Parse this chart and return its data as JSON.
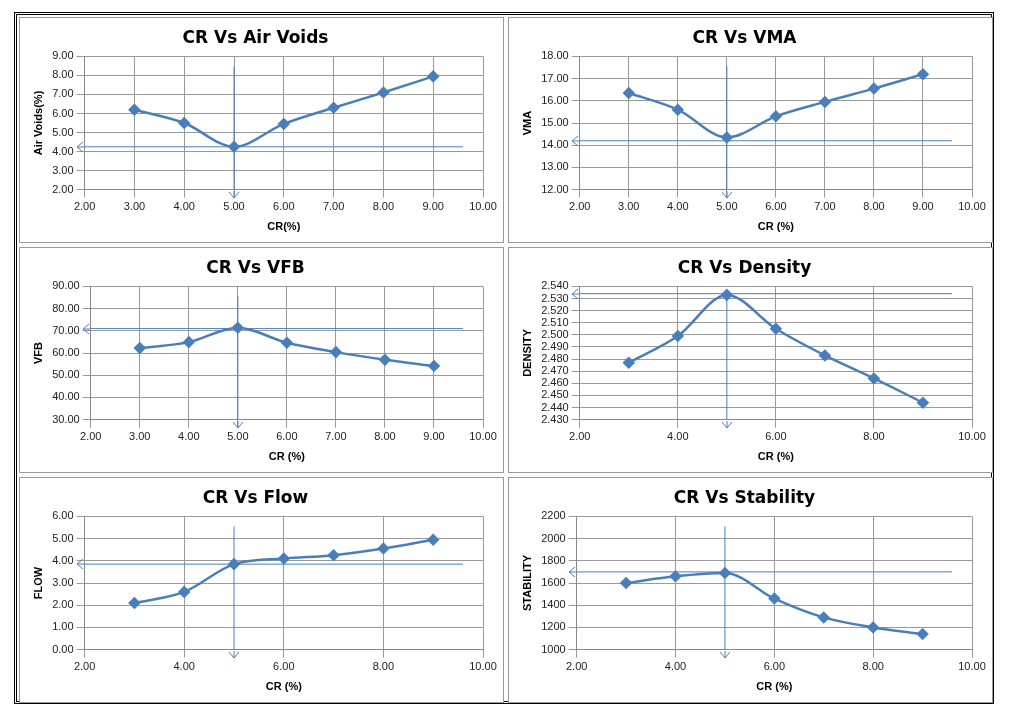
{
  "chart_data": [
    {
      "type": "line",
      "title": "CR Vs Air Voids",
      "xlabel": "CR(%)",
      "ylabel": "Air Voids(%)",
      "x": [
        3,
        4,
        5,
        6,
        7,
        8,
        9
      ],
      "marker": "diamond",
      "grid": true,
      "line_style": "solid",
      "series": [
        {
          "color": "#4a7ebb",
          "values": [
            6.2,
            5.5,
            4.25,
            5.45,
            6.3,
            7.1,
            7.95
          ]
        }
      ],
      "xlim": [
        2,
        10
      ],
      "xticks": [
        {
          "value": 2,
          "label": "2.00"
        },
        {
          "value": 3,
          "label": "3.00"
        },
        {
          "value": 4,
          "label": "4.00"
        },
        {
          "value": 5,
          "label": "5.00"
        },
        {
          "value": 6,
          "label": "6.00"
        },
        {
          "value": 7,
          "label": "7.00"
        },
        {
          "value": 8,
          "label": "8.00"
        },
        {
          "value": 9,
          "label": "9.00"
        },
        {
          "value": 10,
          "label": "10.00"
        }
      ],
      "ylim": [
        2,
        9
      ],
      "yticks": [
        {
          "value": 2,
          "label": "2.00"
        },
        {
          "value": 3,
          "label": "3.00"
        },
        {
          "value": 4,
          "label": "4.00"
        },
        {
          "value": 5,
          "label": "5.00"
        },
        {
          "value": 6,
          "label": "6.00"
        },
        {
          "value": 7,
          "label": "7.00"
        },
        {
          "value": 8,
          "label": "8.00"
        },
        {
          "value": 9,
          "label": "9.00"
        }
      ],
      "ref_lines": [
        {
          "axis": "y",
          "value": 4.25,
          "label": null
        },
        {
          "axis": "x",
          "value": 5,
          "label": null
        }
      ]
    },
    {
      "type": "line",
      "title": "CR Vs VMA",
      "xlabel": "CR (%)",
      "ylabel": "VMA",
      "x": [
        3,
        4,
        5,
        6,
        7,
        8,
        9
      ],
      "marker": "diamond",
      "grid": true,
      "line_style": "solid",
      "series": [
        {
          "color": "#4a7ebb",
          "values": [
            16.35,
            15.6,
            14.35,
            15.3,
            15.95,
            16.55,
            17.2
          ]
        }
      ],
      "xlim": [
        2,
        10
      ],
      "xticks": [
        {
          "value": 2,
          "label": "2.00"
        },
        {
          "value": 3,
          "label": "3.00"
        },
        {
          "value": 4,
          "label": "4.00"
        },
        {
          "value": 5,
          "label": "5.00"
        },
        {
          "value": 6,
          "label": "6.00"
        },
        {
          "value": 7,
          "label": "7.00"
        },
        {
          "value": 8,
          "label": "8.00"
        },
        {
          "value": 9,
          "label": "9.00"
        },
        {
          "value": 10,
          "label": "10.00"
        }
      ],
      "ylim": [
        12,
        18
      ],
      "yticks": [
        {
          "value": 12,
          "label": "12.00"
        },
        {
          "value": 13,
          "label": "13.00"
        },
        {
          "value": 14,
          "label": "14.00"
        },
        {
          "value": 15,
          "label": "15.00"
        },
        {
          "value": 16,
          "label": "16.00"
        },
        {
          "value": 17,
          "label": "17.00"
        },
        {
          "value": 18,
          "label": "18.00"
        }
      ],
      "ref_lines": [
        {
          "axis": "y",
          "value": 14.2,
          "label": null
        },
        {
          "axis": "x",
          "value": 5,
          "label": null
        }
      ]
    },
    {
      "type": "line",
      "title": "CR Vs VFB",
      "xlabel": "CR (%)",
      "ylabel": "VFB",
      "x": [
        3,
        4,
        5,
        6,
        7,
        8,
        9
      ],
      "marker": "diamond",
      "grid": true,
      "line_style": "solid",
      "series": [
        {
          "color": "#4a7ebb",
          "values": [
            62.2,
            64.9,
            71.4,
            64.6,
            60.4,
            57.0,
            54.1
          ]
        }
      ],
      "xlim": [
        2,
        10
      ],
      "xticks": [
        {
          "value": 2,
          "label": "2.00"
        },
        {
          "value": 3,
          "label": "3.00"
        },
        {
          "value": 4,
          "label": "4.00"
        },
        {
          "value": 5,
          "label": "5.00"
        },
        {
          "value": 6,
          "label": "6.00"
        },
        {
          "value": 7,
          "label": "7.00"
        },
        {
          "value": 8,
          "label": "8.00"
        },
        {
          "value": 9,
          "label": "9.00"
        },
        {
          "value": 10,
          "label": "10.00"
        }
      ],
      "ylim": [
        30,
        90
      ],
      "yticks": [
        {
          "value": 30,
          "label": "30.00"
        },
        {
          "value": 40,
          "label": "40.00"
        },
        {
          "value": 50,
          "label": "50.00"
        },
        {
          "value": 60,
          "label": "60.00"
        },
        {
          "value": 70,
          "label": "70.00"
        },
        {
          "value": 80,
          "label": "80.00"
        },
        {
          "value": 90,
          "label": "90.00"
        }
      ],
      "ref_lines": [
        {
          "axis": "y",
          "value": 71,
          "label": null
        },
        {
          "axis": "x",
          "value": 5,
          "label": null
        }
      ]
    },
    {
      "type": "line",
      "title": "CR Vs Density",
      "xlabel": "CR (%)",
      "ylabel": "DENSITY",
      "x": [
        3,
        4,
        5,
        6,
        7,
        8,
        9
      ],
      "marker": "diamond",
      "grid": true,
      "line_style": "solid",
      "series": [
        {
          "color": "#4a7ebb",
          "values": [
            2.477,
            2.499,
            2.533,
            2.505,
            2.483,
            2.464,
            2.444
          ]
        }
      ],
      "xlim": [
        2,
        10
      ],
      "xticks": [
        {
          "value": 2,
          "label": "2.00"
        },
        {
          "value": 4,
          "label": "4.00"
        },
        {
          "value": 6,
          "label": "6.00"
        },
        {
          "value": 8,
          "label": "8.00"
        },
        {
          "value": 10,
          "label": "10.00"
        }
      ],
      "ylim": [
        2.43,
        2.54
      ],
      "yticks": [
        {
          "value": 2.43,
          "label": "2.430"
        },
        {
          "value": 2.44,
          "label": "2.440"
        },
        {
          "value": 2.45,
          "label": "2.450"
        },
        {
          "value": 2.46,
          "label": "2.460"
        },
        {
          "value": 2.47,
          "label": "2.470"
        },
        {
          "value": 2.48,
          "label": "2.480"
        },
        {
          "value": 2.49,
          "label": "2.490"
        },
        {
          "value": 2.5,
          "label": "2.500"
        },
        {
          "value": 2.51,
          "label": "2.510"
        },
        {
          "value": 2.52,
          "label": "2.520"
        },
        {
          "value": 2.53,
          "label": "2.530"
        },
        {
          "value": 2.54,
          "label": "2.540"
        }
      ],
      "ref_lines": [
        {
          "axis": "y",
          "value": 2.534,
          "label": null
        },
        {
          "axis": "x",
          "value": 5,
          "label": null
        }
      ]
    },
    {
      "type": "line",
      "title": "CR Vs Flow",
      "xlabel": "CR (%)",
      "ylabel": "FLOW",
      "x": [
        3,
        4,
        5,
        6,
        7,
        8,
        9
      ],
      "marker": "diamond",
      "grid": true,
      "line_style": "solid",
      "series": [
        {
          "color": "#4a7ebb",
          "values": [
            2.1,
            2.6,
            3.85,
            4.1,
            4.25,
            4.55,
            4.95
          ]
        }
      ],
      "xlim": [
        2,
        10
      ],
      "xticks": [
        {
          "value": 2,
          "label": "2.00"
        },
        {
          "value": 4,
          "label": "4.00"
        },
        {
          "value": 6,
          "label": "6.00"
        },
        {
          "value": 8,
          "label": "8.00"
        },
        {
          "value": 10,
          "label": "10.00"
        }
      ],
      "ylim": [
        0,
        6
      ],
      "yticks": [
        {
          "value": 0,
          "label": "0.00"
        },
        {
          "value": 1,
          "label": "1.00"
        },
        {
          "value": 2,
          "label": "2.00"
        },
        {
          "value": 3,
          "label": "3.00"
        },
        {
          "value": 4,
          "label": "4.00"
        },
        {
          "value": 5,
          "label": "5.00"
        },
        {
          "value": 6,
          "label": "6.00"
        }
      ],
      "ref_lines": [
        {
          "axis": "y",
          "value": 3.85,
          "label": null
        },
        {
          "axis": "x",
          "value": 5,
          "label": null
        }
      ]
    },
    {
      "type": "line",
      "title": "CR Vs Stability",
      "xlabel": "CR (%)",
      "ylabel": "STABILITY",
      "x": [
        3,
        4,
        5,
        6,
        7,
        8,
        9
      ],
      "marker": "diamond",
      "grid": true,
      "line_style": "solid",
      "series": [
        {
          "color": "#4a7ebb",
          "values": [
            1600,
            1660,
            1690,
            1460,
            1290,
            1200,
            1140
          ]
        }
      ],
      "xlim": [
        2,
        10
      ],
      "xticks": [
        {
          "value": 2,
          "label": "2.00"
        },
        {
          "value": 4,
          "label": "4.00"
        },
        {
          "value": 6,
          "label": "6.00"
        },
        {
          "value": 8,
          "label": "8.00"
        },
        {
          "value": 10,
          "label": "10.00"
        }
      ],
      "ylim": [
        1000,
        2200
      ],
      "yticks": [
        1000,
        1200,
        1400,
        1600,
        1800,
        2000,
        2200
      ],
      "ref_lines": [
        {
          "axis": "y",
          "value": 1700,
          "label": null
        },
        {
          "axis": "x",
          "value": 5,
          "label": null
        }
      ]
    }
  ]
}
